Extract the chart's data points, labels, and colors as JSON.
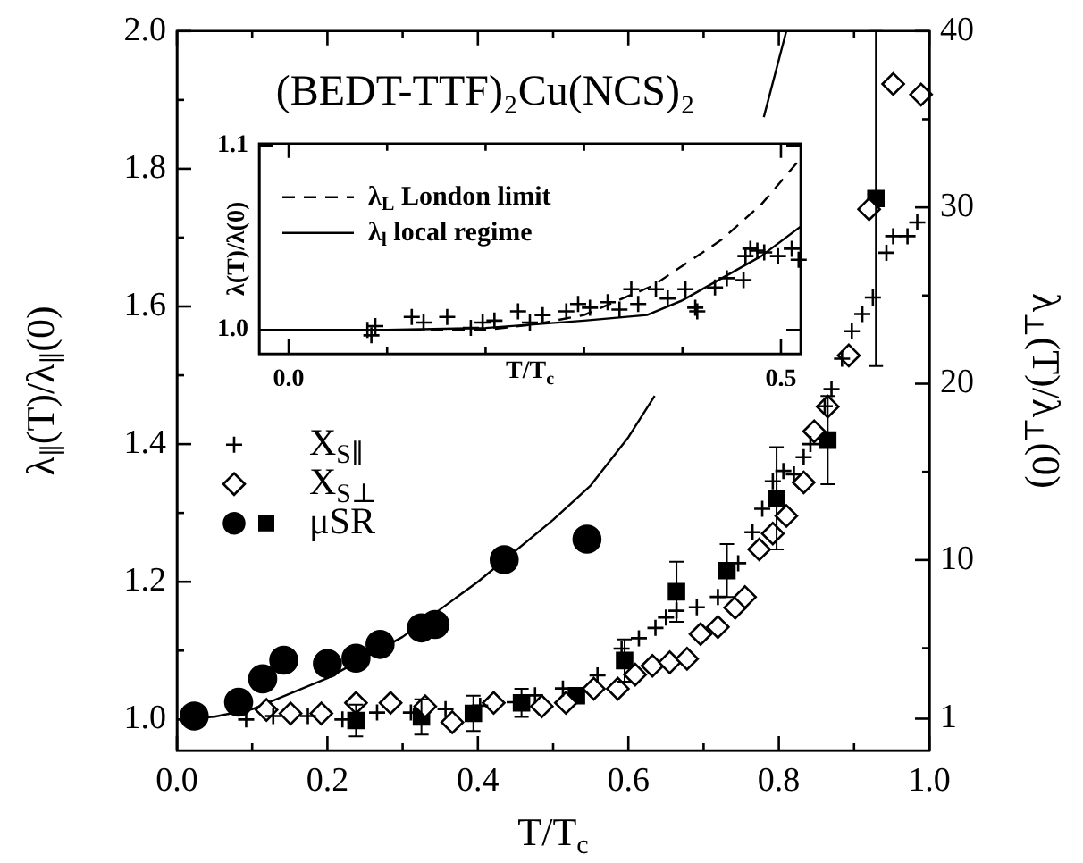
{
  "chart_data": [
    {
      "type": "scatter",
      "xlabel": "T/T$_{c}$",
      "ylabel": "λ$_{∥}$(T)/λ$_{∥}$(0)",
      "y2label": "λ$_{⊥}$(T)/λ$_{⊥}$(0)",
      "annotations": [
        "(BEDT-TTF)₂Cu(NCS)₂"
      ],
      "xlim": [
        0,
        1.0
      ],
      "xticks": [
        {
          "value": 0,
          "label": "0.0"
        },
        {
          "value": 0.1,
          "label": null
        },
        0.2,
        {
          "value": 0.3,
          "label": null
        },
        0.4,
        {
          "value": 0.5,
          "label": null
        },
        0.6,
        {
          "value": 0.7,
          "label": null
        },
        0.8,
        {
          "value": 0.9,
          "label": null
        },
        {
          "value": 1,
          "label": "1.0"
        }
      ],
      "ylim": [
        0.955,
        2.0
      ],
      "yticks": [
        {
          "value": 1,
          "label": "1.0"
        },
        {
          "value": 1.1,
          "label": null
        },
        1.2,
        {
          "value": 1.3,
          "label": null
        },
        1.4,
        {
          "value": 1.5,
          "label": null
        },
        1.6,
        {
          "value": 1.7,
          "label": null
        },
        1.8,
        {
          "value": 1.9,
          "label": null
        },
        {
          "value": 2,
          "label": "2.0"
        }
      ],
      "y2lim": [
        -0.8,
        40
      ],
      "y2ticks": [
        1,
        {
          "value": 5,
          "label": null
        },
        10,
        {
          "value": 15,
          "label": null
        },
        20,
        {
          "value": 25,
          "label": null
        },
        30,
        {
          "value": 35,
          "label": null
        },
        40
      ],
      "grid": false,
      "legend": "left",
      "series": [
        {
          "name": "X$_{S∥}$",
          "type": "scatter",
          "marker": "cross",
          "color": "#000000",
          "x": [
            0.092,
            0.128,
            0.174,
            0.22,
            0.266,
            0.311,
            0.357,
            0.403,
            0.449,
            0.476,
            0.513,
            0.559,
            0.591,
            0.614,
            0.636,
            0.65,
            0.664,
            0.691,
            0.719,
            0.746,
            0.765,
            0.778,
            0.792,
            0.806,
            0.82,
            0.833,
            0.842,
            0.861,
            0.87,
            0.884,
            0.897,
            0.911,
            0.925,
            0.943,
            0.952,
            0.971,
            0.984
          ],
          "values": [
            1.0,
            1.005,
            1.005,
            1.0,
            1.01,
            1.01,
            1.015,
            1.02,
            1.025,
            1.035,
            1.045,
            1.064,
            1.103,
            1.118,
            1.133,
            1.148,
            1.158,
            1.163,
            1.178,
            1.227,
            1.272,
            1.306,
            1.346,
            1.361,
            1.356,
            1.381,
            1.4,
            1.455,
            1.48,
            1.524,
            1.564,
            1.589,
            1.613,
            1.678,
            1.702,
            1.702,
            1.722
          ]
        },
        {
          "name": "X$_{S⊥}$",
          "type": "scatter",
          "marker": "diamond",
          "color": "#000000",
          "axis": "y2",
          "x": [
            0.119,
            0.151,
            0.192,
            0.238,
            0.284,
            0.33,
            0.366,
            0.421,
            0.485,
            0.517,
            0.554,
            0.586,
            0.609,
            0.632,
            0.655,
            0.678,
            0.696,
            0.719,
            0.742,
            0.755,
            0.774,
            0.792,
            0.81,
            0.833,
            0.847,
            0.865,
            0.893,
            0.92,
            0.952,
            0.989
          ],
          "values": [
            1.5,
            1.3,
            1.3,
            1.9,
            1.9,
            1.7,
            0.8,
            1.9,
            1.7,
            1.9,
            2.7,
            2.7,
            3.5,
            4.0,
            4.2,
            4.4,
            5.8,
            6.2,
            7.3,
            7.9,
            10.6,
            11.5,
            12.5,
            14.4,
            17.3,
            18.7,
            21.6,
            29.9,
            37.0,
            36.4
          ]
        },
        {
          "name": "μSR",
          "type": "scatter",
          "marker": "square",
          "color": "#000000",
          "axis": "y2",
          "x": [
            0.238,
            0.325,
            0.394,
            0.458,
            0.531,
            0.595,
            0.664,
            0.731,
            0.797,
            0.865,
            0.929
          ],
          "values": [
            0.9,
            1.1,
            1.3,
            1.9,
            2.3,
            4.3,
            8.2,
            9.4,
            13.5,
            16.8,
            30.5
          ],
          "errors": [
            0.9,
            1.0,
            1.0,
            0.8,
            null,
            1.2,
            1.7,
            1.5,
            2.9,
            2.5,
            9.5
          ]
        },
        {
          "type": "scatter",
          "marker": "circle",
          "color": "#000000",
          "x": [
            0.023,
            0.082,
            0.114,
            0.142,
            0.2,
            0.238,
            0.27,
            0.325,
            0.343,
            0.435,
            0.545
          ],
          "values": [
            1.005,
            1.025,
            1.059,
            1.086,
            1.081,
            1.089,
            1.109,
            1.133,
            1.138,
            1.232,
            1.262
          ]
        },
        {
          "type": "line",
          "marker": "none",
          "line_style": "solid",
          "color": "#000000",
          "x": [
            0,
            0.05,
            0.1,
            0.2,
            0.3,
            0.4,
            0.5,
            0.55,
            0.6,
            0.635,
            0.72,
            0.78,
            0.81
          ],
          "values": [
            1.0,
            1.004,
            1.015,
            1.06,
            1.12,
            1.2,
            1.29,
            1.34,
            1.41,
            1.47,
            null,
            1.875,
            2.0
          ]
        }
      ]
    },
    {
      "type": "scatter",
      "xlabel": "T/T$_{c}$",
      "ylabel": "λ(T)/λ(0)",
      "xlim": [
        -0.03,
        0.52
      ],
      "xticks": [
        {
          "value": 0,
          "label": "0.0"
        },
        {
          "value": 0.1,
          "label": null
        },
        {
          "value": 0.2,
          "label": null
        },
        {
          "value": 0.3,
          "label": null
        },
        {
          "value": 0.4,
          "label": null
        },
        0.5
      ],
      "ylim": [
        0.987,
        1.101
      ],
      "yticks": [
        {
          "value": 1,
          "label": "1.0"
        },
        1.1
      ],
      "grid": false,
      "legend": "top left",
      "series": [
        {
          "name": "λ$_{L}$ London limit",
          "type": "line",
          "marker": "none",
          "line_style": "dashed",
          "color": "#000000",
          "x": [
            -0.03,
            0.2,
            0.25,
            0.3,
            0.37,
            0.44,
            0.48,
            0.52
          ],
          "values": [
            1.0,
            1.0,
            1.003,
            1.008,
            1.024,
            1.049,
            1.068,
            1.093
          ]
        },
        {
          "name": "λ$_{l}$ local regime",
          "type": "line",
          "marker": "none",
          "line_style": "solid",
          "color": "#000000",
          "x": [
            -0.03,
            0.1,
            0.2,
            0.3,
            0.364,
            0.4,
            0.44,
            0.48,
            0.52
          ],
          "values": [
            1.0,
            1.0,
            1.001,
            1.005,
            1.008,
            1.016,
            1.028,
            1.04,
            1.056
          ]
        },
        {
          "type": "scatter",
          "marker": "cross",
          "color": "#000000",
          "x": [
            0.08,
            0.084,
            0.088,
            0.125,
            0.137,
            0.161,
            0.185,
            0.197,
            0.209,
            0.233,
            0.245,
            0.258,
            0.282,
            0.294,
            0.306,
            0.324,
            0.336,
            0.348,
            0.355,
            0.373,
            0.385,
            0.403,
            0.413,
            0.415,
            0.433,
            0.445,
            0.462,
            0.464,
            0.469,
            0.476,
            0.483,
            0.497,
            0.511,
            0.518
          ],
          "values": [
            1.0,
            0.997,
            1.002,
            1.007,
            1.004,
            1.007,
            1.001,
            1.004,
            1.005,
            1.01,
            1.004,
            1.008,
            1.01,
            1.014,
            1.012,
            1.015,
            1.011,
            1.022,
            1.014,
            1.022,
            1.017,
            1.022,
            1.012,
            1.01,
            1.023,
            1.028,
            1.027,
            1.04,
            1.044,
            1.043,
            1.042,
            1.04,
            1.044,
            1.038
          ]
        }
      ]
    }
  ]
}
